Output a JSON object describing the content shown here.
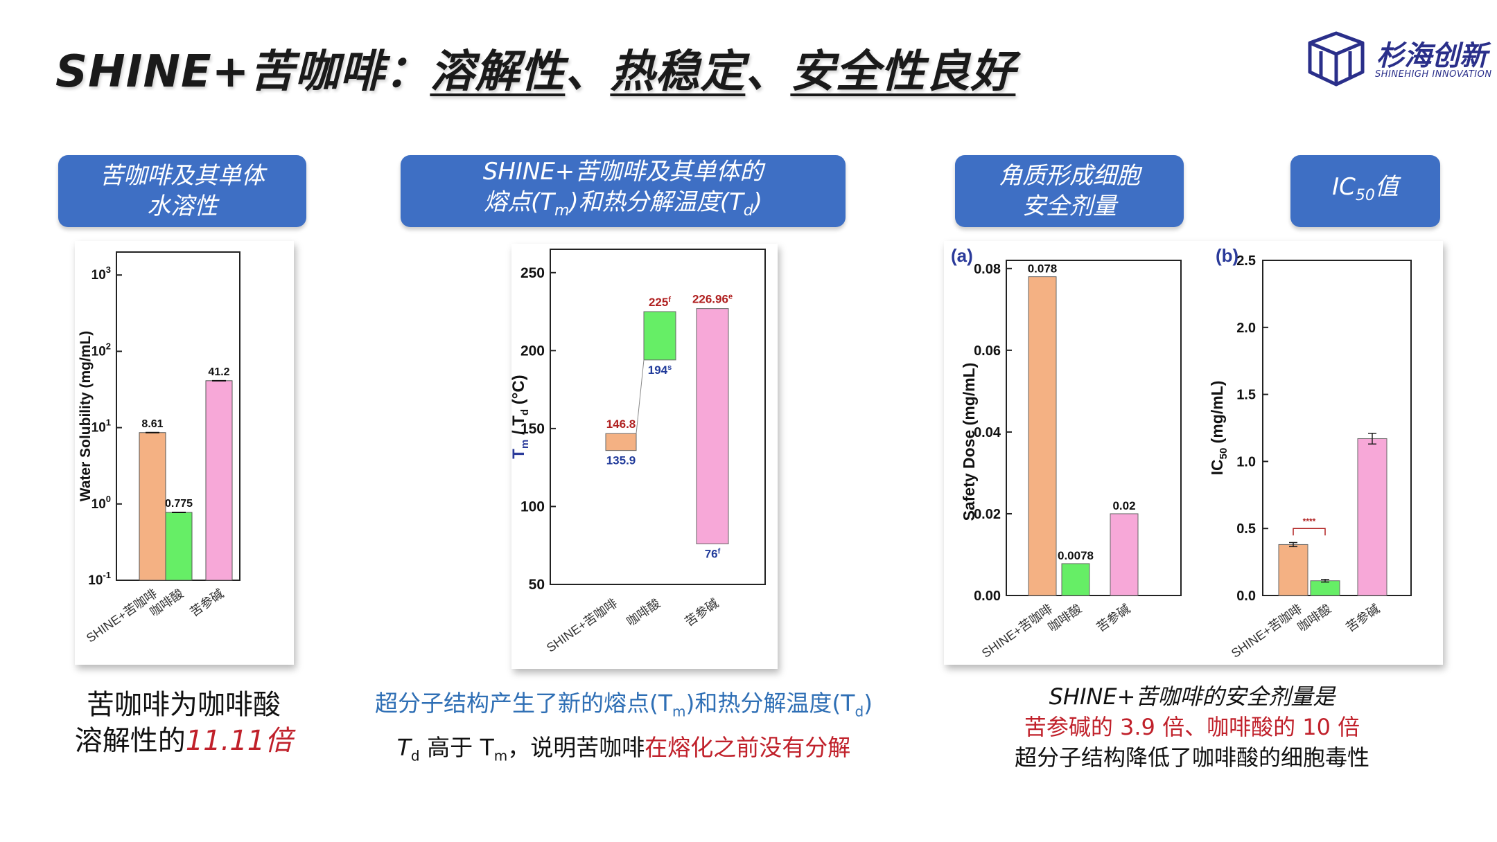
{
  "header": {
    "title_prefix": "SHINE+苦咖啡：",
    "title_u1": "溶解性",
    "sep1": "、",
    "title_u2": "热稳定",
    "sep2": "、",
    "title_u3": "安全性良好",
    "logo_cn": "杉海创新",
    "logo_en": "SHINEHIGH INNOVATION"
  },
  "pills": {
    "p1_line1": "苦咖啡及其单体",
    "p1_line2": "水溶性",
    "p2_line1": "SHINE+苦咖啡及其单体的",
    "p2_line2_a": "熔点(T",
    "p2_line2_sub1": "m",
    "p2_line2_b": ")和热分解温度(T",
    "p2_line2_sub2": "d",
    "p2_line2_c": ")",
    "p3_line1": "角质形成细胞",
    "p3_line2": "安全剂量",
    "p4_a": "IC",
    "p4_sub": "50",
    "p4_b": "值"
  },
  "captions": {
    "c1_line1": "苦咖啡为咖啡酸",
    "c1_line2_a": "溶解性的",
    "c1_line2_b": "11.11倍",
    "c2_line1_a": "超分子结构产生了新的熔点(T",
    "c2_line1_sub1": "m",
    "c2_line1_b": ")和热分解温度(T",
    "c2_line1_sub2": "d",
    "c2_line1_c": ")",
    "c2_line2_a": "T",
    "c2_line2_sub1": "d",
    "c2_line2_b": " 高于 T",
    "c2_line2_sub2": "m",
    "c2_line2_c": "，说明苦咖啡",
    "c2_line2_red": "在熔化之前没有分解",
    "c3_line1": "SHINE+苦咖啡的安全剂量是",
    "c3_line2": "苦参碱的 3.9 倍、咖啡酸的 10 倍",
    "c3_line3": "超分子结构降低了咖啡酸的细胞毒性"
  },
  "chart_data": [
    {
      "type": "bar",
      "yscale": "log",
      "ylabel": "Water Solubility (mg/mL)",
      "ylim": [
        0.1,
        2000
      ],
      "yticks": [
        {
          "value": 0.1,
          "base": "10",
          "exp": "-1"
        },
        {
          "value": 1,
          "base": "10",
          "exp": "0"
        },
        {
          "value": 10,
          "base": "10",
          "exp": "1"
        },
        {
          "value": 100,
          "base": "10",
          "exp": "2"
        },
        {
          "value": 1000,
          "base": "10",
          "exp": "3"
        }
      ],
      "categories": [
        "SHINE+苦咖啡",
        "咖啡酸",
        "苦参碱"
      ],
      "values": [
        8.61,
        0.775,
        41.2
      ],
      "labels": [
        "8.61",
        "0.775",
        "41.2"
      ],
      "colors": [
        "#f4b183",
        "#66ee66",
        "#f7a8d8"
      ]
    },
    {
      "type": "bar",
      "subtype": "floating",
      "ylabel_a": "T",
      "ylabel_sub1": "m",
      "ylabel_b": " / T",
      "ylabel_sub2": "d",
      "ylabel_c": " (°C)",
      "ylim": [
        50,
        265
      ],
      "yticks": [
        50,
        100,
        150,
        200,
        250
      ],
      "categories": [
        "SHINE+苦咖啡",
        "咖啡酸",
        "苦参碱"
      ],
      "ranges": [
        [
          135.9,
          146.8
        ],
        [
          194,
          225
        ],
        [
          76,
          226.96
        ]
      ],
      "top_labels": [
        "146.8",
        "225",
        "226.96"
      ],
      "top_sups": [
        "",
        "f",
        "e"
      ],
      "bottom_labels": [
        "135.9",
        "194",
        "76"
      ],
      "bottom_sups": [
        "",
        "s",
        "f"
      ],
      "colors": [
        "#f4b183",
        "#66ee66",
        "#f7a8d8"
      ],
      "top_label_color": "#b02020",
      "bottom_label_color": "#203a9a"
    },
    {
      "type": "bar",
      "panel": "(a)",
      "ylabel": "Safety Dose (mg/mL)",
      "ylim": [
        0,
        0.082
      ],
      "yticks": [
        "0.00",
        "0.02",
        "0.04",
        "0.06",
        "0.08"
      ],
      "categories": [
        "SHINE+苦咖啡",
        "咖啡酸",
        "苦参碱"
      ],
      "values": [
        0.078,
        0.0078,
        0.02
      ],
      "labels": [
        "0.078",
        "0.0078",
        "0.02"
      ],
      "colors": [
        "#f4b183",
        "#66ee66",
        "#f7a8d8"
      ]
    },
    {
      "type": "bar",
      "panel": "(b)",
      "ylabel_a": "IC",
      "ylabel_sub": "50",
      "ylabel_b": " (mg/mL)",
      "ylim": [
        0,
        2.5
      ],
      "yticks": [
        "0.0",
        "0.5",
        "1.0",
        "1.5",
        "2.0",
        "2.5"
      ],
      "categories": [
        "SHINE+苦咖啡",
        "咖啡酸",
        "苦参碱"
      ],
      "values": [
        0.38,
        0.11,
        1.17
      ],
      "errors": [
        0.015,
        0.01,
        0.04
      ],
      "significance": "****",
      "colors": [
        "#f4b183",
        "#66ee66",
        "#f7a8d8"
      ]
    }
  ]
}
